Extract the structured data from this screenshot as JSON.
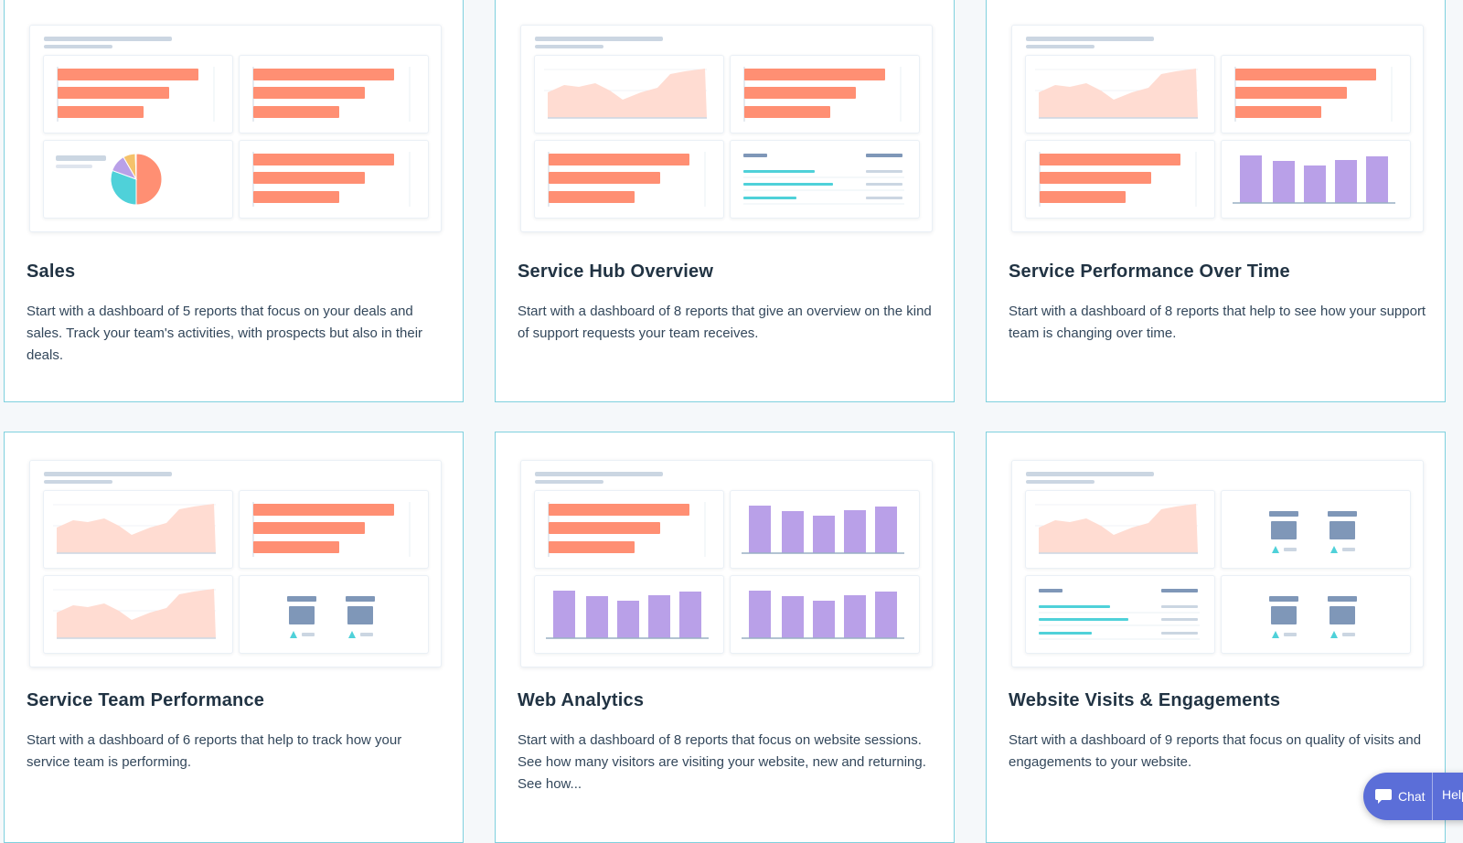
{
  "cards": [
    {
      "title": "Sales",
      "description": "Start with a dashboard of 5 reports that focus on your deals and sales. Track your team's activities, with prospects but also in their deals.",
      "panels": [
        "hbar",
        "hbar",
        "pie",
        "hbar"
      ]
    },
    {
      "title": "Service Hub Overview",
      "description": "Start with a dashboard of 8 reports that give an overview on the kind of support requests your team receives.",
      "panels": [
        "area",
        "hbar",
        "hbar",
        "table"
      ]
    },
    {
      "title": "Service Performance Over Time",
      "description": "Start with a dashboard of 8 reports that help to see how your support team is changing over time.",
      "panels": [
        "area",
        "hbar",
        "hbar",
        "vbar"
      ]
    },
    {
      "title": "Service Team Performance",
      "description": "Start with a dashboard of 6 reports that help to track how your service team is performing.",
      "panels": [
        "area",
        "hbar",
        "area",
        "kpi"
      ]
    },
    {
      "title": "Web Analytics",
      "description": "Start with a dashboard of 8 reports that focus on website sessions. See how many visitors are visiting your website, new and returning. See how...",
      "panels": [
        "hbar",
        "vbar",
        "vbar",
        "vbar"
      ]
    },
    {
      "title": "Website Visits & Engagements",
      "description": "Start with a dashboard of 9 reports that focus on quality of visits and engagements to your website.",
      "panels": [
        "area",
        "kpi",
        "table",
        "kpi"
      ]
    }
  ],
  "chat": {
    "chat_label": "Chat",
    "help_label": "Help"
  },
  "colors": {
    "bar": "#ff8f73",
    "area": "#ffdcd2",
    "purple": "#b9a0e8",
    "teal": "#4fd1d9",
    "slate": "#7f97b8",
    "border": "#7fd1de"
  }
}
